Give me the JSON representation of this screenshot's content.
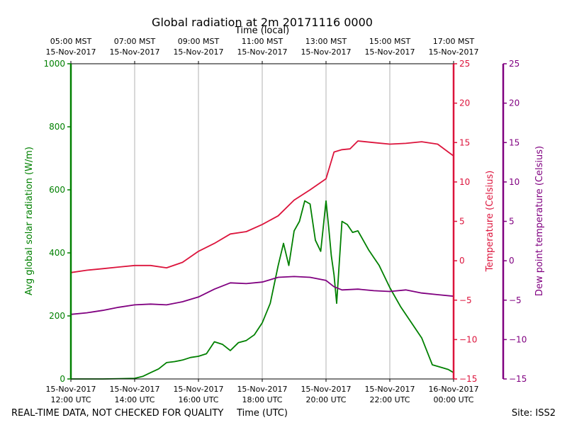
{
  "chart_data": {
    "type": "line",
    "title": "Global radiation at 2m 20171116 0000",
    "top_axis_label": "Time (local)",
    "bottom_axis_label": "Time (UTC)",
    "footer_left": "REAL-TIME DATA, NOT CHECKED FOR QUALITY",
    "footer_right": "Site: ISS2",
    "x_range": [
      "2017-11-15 12:00 UTC",
      "2017-11-16 00:00 UTC"
    ],
    "bottom_ticks": [
      {
        "date": "15-Nov-2017",
        "time": "12:00 UTC"
      },
      {
        "date": "15-Nov-2017",
        "time": "14:00 UTC"
      },
      {
        "date": "15-Nov-2017",
        "time": "16:00 UTC"
      },
      {
        "date": "15-Nov-2017",
        "time": "18:00 UTC"
      },
      {
        "date": "15-Nov-2017",
        "time": "20:00 UTC"
      },
      {
        "date": "15-Nov-2017",
        "time": "22:00 UTC"
      },
      {
        "date": "16-Nov-2017",
        "time": "00:00 UTC"
      }
    ],
    "top_ticks": [
      {
        "time": "05:00 MST",
        "date": "15-Nov-2017"
      },
      {
        "time": "07:00 MST",
        "date": "15-Nov-2017"
      },
      {
        "time": "09:00 MST",
        "date": "15-Nov-2017"
      },
      {
        "time": "11:00 MST",
        "date": "15-Nov-2017"
      },
      {
        "time": "13:00 MST",
        "date": "15-Nov-2017"
      },
      {
        "time": "15:00 MST",
        "date": "15-Nov-2017"
      },
      {
        "time": "17:00 MST",
        "date": "15-Nov-2017"
      }
    ],
    "grid": "vertical",
    "axes": {
      "left": {
        "label": "Avg global solar radiation (W/m)",
        "range": [
          0,
          1000
        ],
        "ticks": [
          "0",
          "200",
          "400",
          "600",
          "800",
          "1000"
        ],
        "color": "#008000"
      },
      "right1": {
        "label": "Temperature (Celsius)",
        "range": [
          -15,
          25
        ],
        "ticks": [
          "−15",
          "−10",
          "−5",
          "0",
          "5",
          "10",
          "15",
          "20",
          "25"
        ],
        "color": "#dc143c"
      },
      "right2": {
        "label": "Dew point temperature (Celsius)",
        "range": [
          -15,
          25
        ],
        "ticks": [
          "−15",
          "−10",
          "−5",
          "0",
          "5",
          "10",
          "15",
          "20",
          "25"
        ],
        "color": "#800080"
      }
    },
    "series": [
      {
        "axis": "left",
        "color": "#008000",
        "x": [
          "12:00",
          "13:00",
          "13:30",
          "14:00",
          "14:15",
          "14:30",
          "14:45",
          "15:00",
          "15:15",
          "15:30",
          "15:45",
          "16:00",
          "16:15",
          "16:30",
          "16:45",
          "17:00",
          "17:15",
          "17:30",
          "17:45",
          "18:00",
          "18:15",
          "18:30",
          "18:40",
          "18:50",
          "19:00",
          "19:10",
          "19:20",
          "19:30",
          "19:40",
          "19:50",
          "20:00",
          "20:05",
          "20:10",
          "20:15",
          "20:20",
          "20:30",
          "20:40",
          "20:50",
          "21:00",
          "21:10",
          "21:20",
          "21:30",
          "21:40",
          "22:00",
          "22:20",
          "22:40",
          "23:00",
          "23:20",
          "23:40",
          "23:50",
          "00:00"
        ],
        "values": [
          0,
          0,
          1,
          2,
          8,
          20,
          32,
          52,
          55,
          60,
          68,
          72,
          80,
          118,
          110,
          90,
          115,
          122,
          140,
          178,
          240,
          360,
          430,
          360,
          470,
          500,
          565,
          555,
          440,
          405,
          565,
          480,
          390,
          330,
          240,
          500,
          490,
          465,
          470,
          440,
          410,
          385,
          360,
          290,
          230,
          180,
          130,
          45,
          35,
          30,
          20
        ]
      },
      {
        "axis": "right1",
        "color": "#dc143c",
        "x": [
          "12:00",
          "12:30",
          "13:00",
          "13:30",
          "14:00",
          "14:30",
          "15:00",
          "15:30",
          "16:00",
          "16:30",
          "17:00",
          "17:30",
          "18:00",
          "18:30",
          "19:00",
          "19:30",
          "20:00",
          "20:15",
          "20:30",
          "20:45",
          "21:00",
          "21:30",
          "22:00",
          "22:30",
          "23:00",
          "23:30",
          "00:00"
        ],
        "values": [
          -1.5,
          -1.2,
          -1.0,
          -0.8,
          -0.6,
          -0.6,
          -0.9,
          -0.2,
          1.2,
          2.2,
          3.4,
          3.7,
          4.6,
          5.7,
          7.7,
          9.0,
          10.4,
          13.8,
          14.1,
          14.2,
          15.2,
          15.0,
          14.8,
          14.9,
          15.1,
          14.8,
          13.3
        ]
      },
      {
        "axis": "right2",
        "color": "#800080",
        "x": [
          "12:00",
          "12:30",
          "13:00",
          "13:30",
          "14:00",
          "14:30",
          "15:00",
          "15:30",
          "16:00",
          "16:30",
          "17:00",
          "17:30",
          "18:00",
          "18:30",
          "19:00",
          "19:30",
          "20:00",
          "20:15",
          "20:30",
          "21:00",
          "21:30",
          "22:00",
          "22:30",
          "23:00",
          "23:30",
          "00:00"
        ],
        "values": [
          -6.8,
          -6.6,
          -6.3,
          -5.9,
          -5.6,
          -5.5,
          -5.6,
          -5.2,
          -4.6,
          -3.6,
          -2.8,
          -2.9,
          -2.7,
          -2.1,
          -2.0,
          -2.1,
          -2.5,
          -3.3,
          -3.7,
          -3.6,
          -3.8,
          -3.9,
          -3.7,
          -4.1,
          -4.3,
          -4.5
        ]
      }
    ]
  }
}
